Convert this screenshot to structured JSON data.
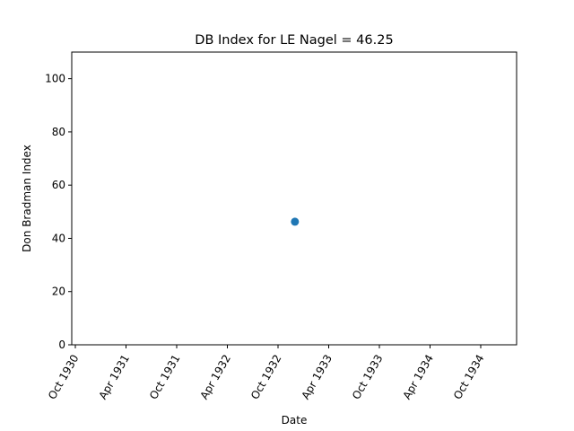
{
  "chart_data": {
    "type": "scatter",
    "title": "DB Index for LE Nagel = 46.25",
    "xlabel": "Date",
    "ylabel": "Don Bradman Index",
    "x_ticks": [
      "Oct 1930",
      "Apr 1931",
      "Oct 1931",
      "Apr 1932",
      "Oct 1932",
      "Apr 1933",
      "Oct 1933",
      "Apr 1934",
      "Oct 1934"
    ],
    "y_ticks": [
      "0",
      "20",
      "40",
      "60",
      "80",
      "100"
    ],
    "ylim": [
      0,
      110
    ],
    "grid": false,
    "legend": "none",
    "series": [
      {
        "color": "#1f77b4",
        "points": [
          {
            "x": "Dec 1932",
            "y": 46.25
          }
        ]
      }
    ]
  }
}
